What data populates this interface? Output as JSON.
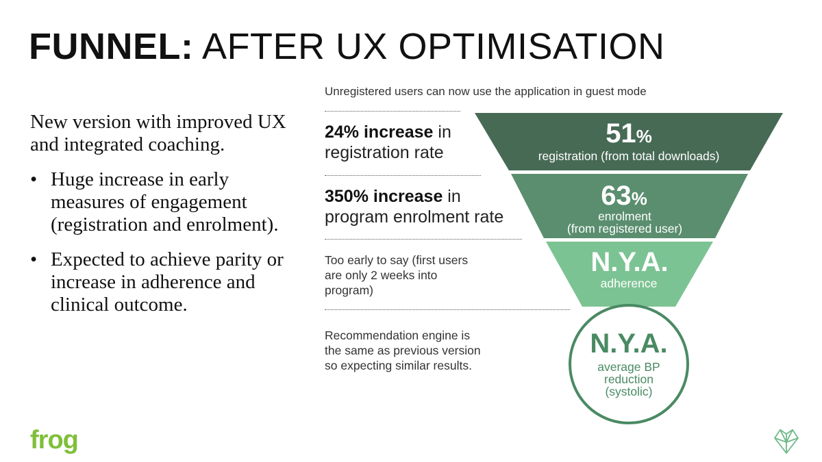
{
  "title": {
    "bold": "FUNNEL:",
    "light": "AFTER UX OPTIMISATION"
  },
  "left": {
    "intro": "New version with improved UX and integrated coaching.",
    "bullets": [
      "Huge increase in early measures of engagement (registration and enrolment).",
      "Expected to achieve parity or increase in adherence and clinical outcome."
    ]
  },
  "guest_note": "Unregistered users can now use the application in guest mode",
  "stats": [
    {
      "bold": "24% increase",
      "rest_inline": " in",
      "rest_line2": "registration rate"
    },
    {
      "bold": "350% increase",
      "rest_inline": " in",
      "rest_line2": "program enrolment rate"
    }
  ],
  "notes": [
    {
      "line1": "Too early to say (first users",
      "line2": "are only 2 weeks into",
      "line3": "program)"
    },
    {
      "line1": "Recommendation engine is",
      "line2": "the same as previous version",
      "line3": "so expecting similar results."
    }
  ],
  "funnel": [
    {
      "value": "51",
      "suffix": "%",
      "label1": "registration (from total downloads)",
      "label2": "",
      "color": "#476a55"
    },
    {
      "value": "63",
      "suffix": "%",
      "label1": "enrolment",
      "label2": "(from registered user)",
      "color": "#5a8e6f"
    },
    {
      "value": "N.Y.A.",
      "suffix": "",
      "label1": "adherence",
      "label2": "",
      "color": "#7cc393"
    }
  ],
  "circle": {
    "value": "N.Y.A.",
    "label1": "average BP",
    "label2": "reduction",
    "label3": "(systolic)",
    "color": "#4a8a63"
  },
  "logo": "frog"
}
